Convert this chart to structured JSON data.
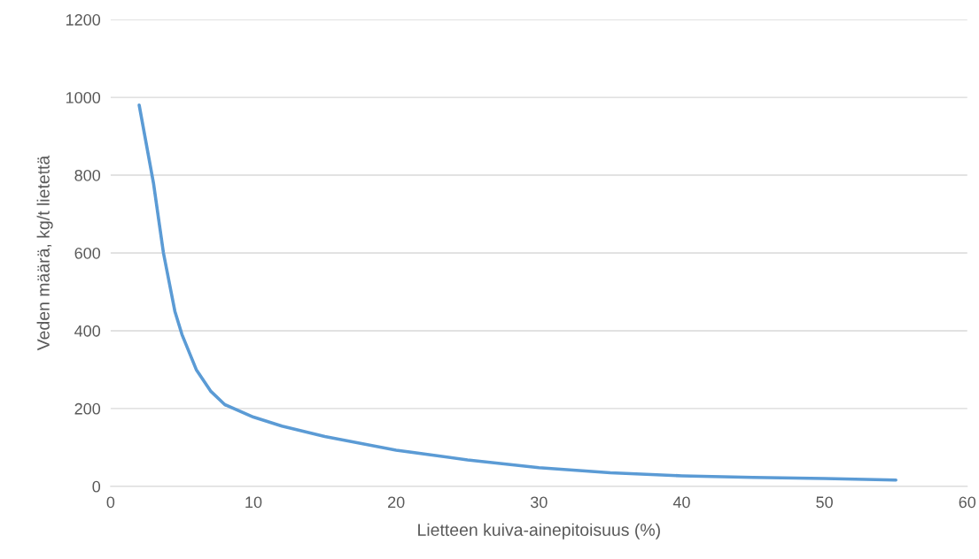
{
  "chart_data": {
    "type": "line",
    "xlabel": "Lietteen kuiva-ainepitoisuus (%)",
    "ylabel": "Veden määrä, kg/t lietettä",
    "x": [
      2,
      3,
      3.7,
      4.5,
      5,
      6,
      7,
      8,
      10,
      12,
      15,
      20,
      25,
      30,
      35,
      40,
      45,
      50,
      55
    ],
    "series": [
      {
        "color": "#5b9bd5",
        "values": [
          980,
          780,
          600,
          450,
          390,
          300,
          245,
          210,
          178,
          155,
          128,
          93,
          68,
          48,
          35,
          27,
          23,
          20,
          16
        ]
      }
    ],
    "xlim": [
      0,
      60
    ],
    "xticks": [
      0,
      10,
      20,
      30,
      40,
      50,
      60
    ],
    "ylim": [
      0,
      1200
    ],
    "yticks": [
      0,
      200,
      400,
      600,
      800,
      1000,
      1200
    ],
    "grid": "y",
    "marker": "none",
    "line_style": "solid"
  }
}
